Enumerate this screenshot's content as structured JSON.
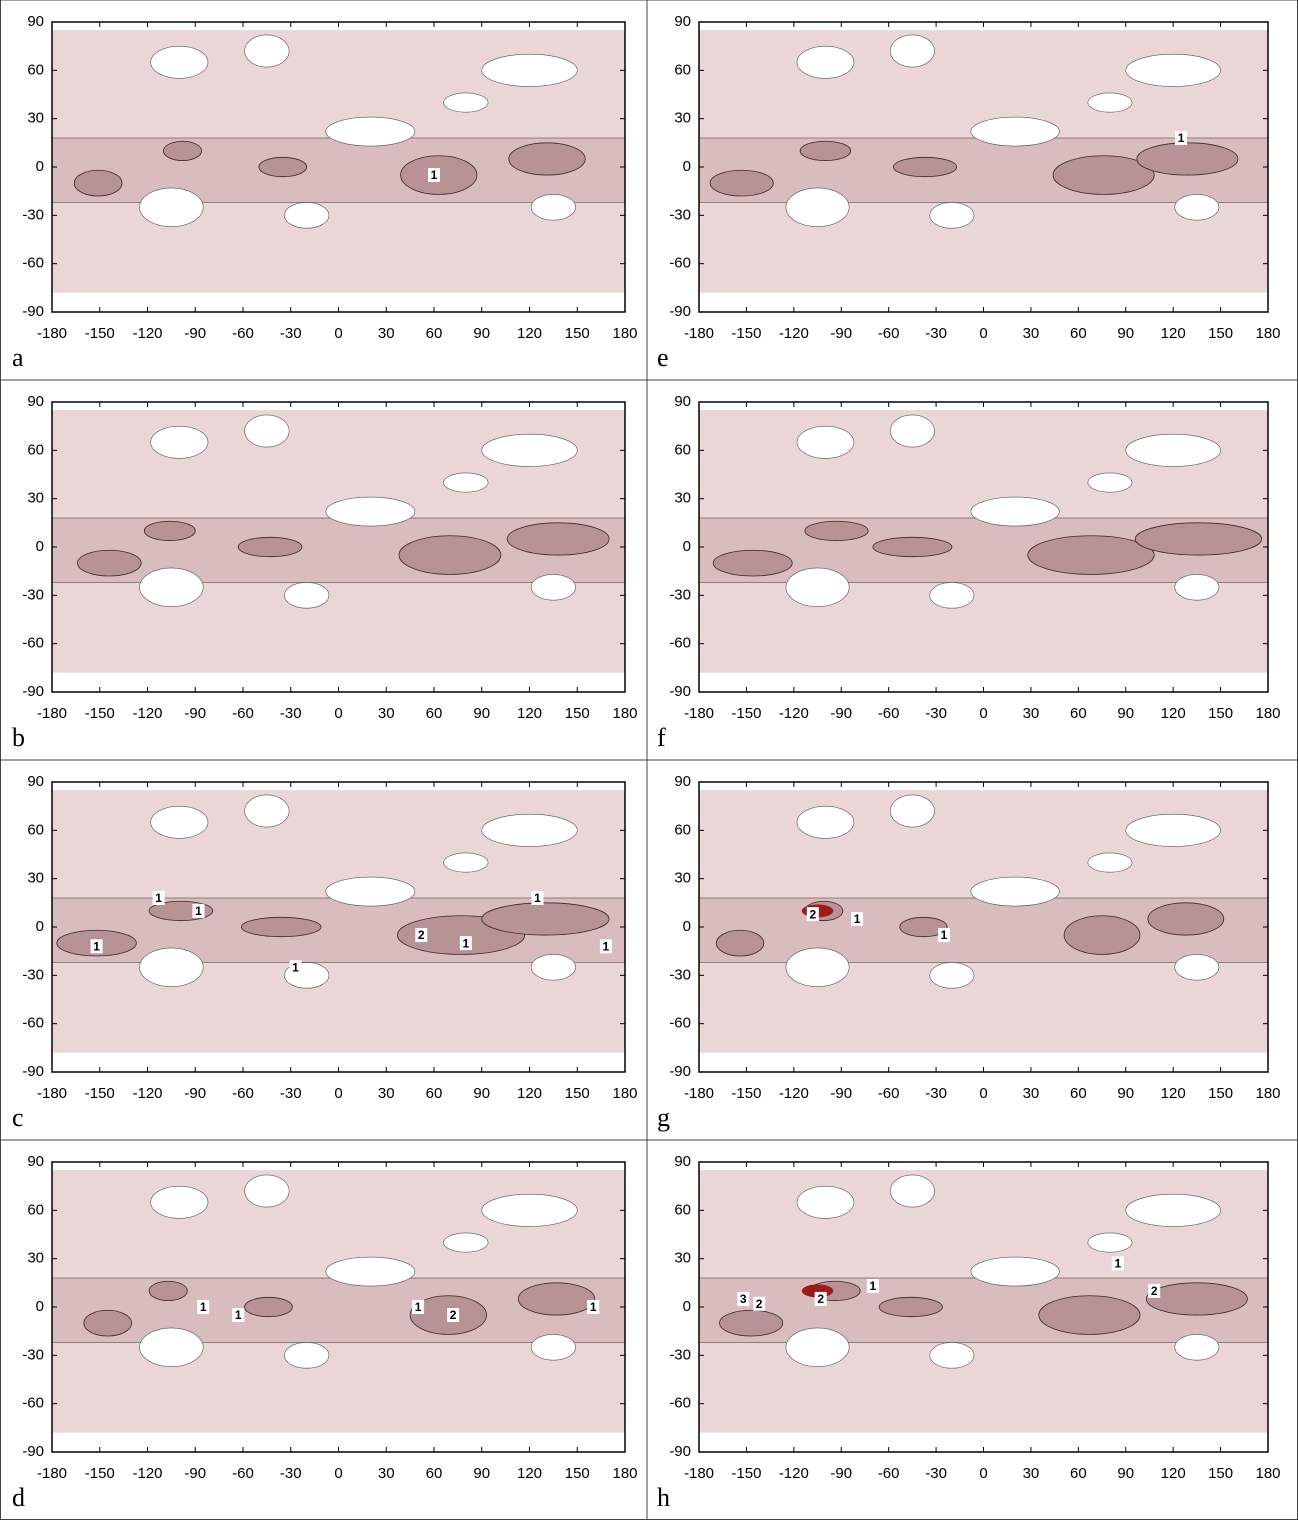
{
  "axes": {
    "xlim": [
      -180,
      180
    ],
    "ylim": [
      -90,
      90
    ],
    "xticks": [
      -180,
      -150,
      -120,
      -90,
      -60,
      -30,
      0,
      30,
      60,
      90,
      120,
      150,
      180
    ],
    "yticks": [
      90,
      60,
      30,
      0,
      -30,
      -60,
      -90
    ]
  },
  "panels": [
    {
      "label": "a",
      "contour_labels": [
        {
          "value": 1,
          "lon": 60,
          "lat": -5
        }
      ]
    },
    {
      "label": "b",
      "contour_labels": []
    },
    {
      "label": "c",
      "contour_labels": [
        {
          "value": 1,
          "lon": -152,
          "lat": -12
        },
        {
          "value": 1,
          "lon": -113,
          "lat": 18
        },
        {
          "value": 1,
          "lon": -88,
          "lat": 10
        },
        {
          "value": 1,
          "lon": -27,
          "lat": -25
        },
        {
          "value": 2,
          "lon": 52,
          "lat": -5
        },
        {
          "value": 1,
          "lon": 80,
          "lat": -10
        },
        {
          "value": 1,
          "lon": 125,
          "lat": 18
        },
        {
          "value": 1,
          "lon": 168,
          "lat": -12
        }
      ]
    },
    {
      "label": "d",
      "contour_labels": [
        {
          "value": 1,
          "lon": -85,
          "lat": 0
        },
        {
          "value": 1,
          "lon": -63,
          "lat": -5
        },
        {
          "value": 1,
          "lon": 50,
          "lat": 0
        },
        {
          "value": 2,
          "lon": 72,
          "lat": -5
        },
        {
          "value": 1,
          "lon": 160,
          "lat": 0
        }
      ]
    },
    {
      "label": "e",
      "contour_labels": [
        {
          "value": 1,
          "lon": 125,
          "lat": 18
        }
      ]
    },
    {
      "label": "f",
      "contour_labels": []
    },
    {
      "label": "g",
      "contour_labels": [
        {
          "value": 2,
          "lon": -108,
          "lat": 8
        },
        {
          "value": 1,
          "lon": -80,
          "lat": 5
        },
        {
          "value": 1,
          "lon": -25,
          "lat": -5
        }
      ]
    },
    {
      "label": "h",
      "contour_labels": [
        {
          "value": 3,
          "lon": -152,
          "lat": 5
        },
        {
          "value": 2,
          "lon": -142,
          "lat": 2
        },
        {
          "value": 2,
          "lon": -103,
          "lat": 5
        },
        {
          "value": 1,
          "lon": -70,
          "lat": 13
        },
        {
          "value": 1,
          "lon": 85,
          "lat": 27
        },
        {
          "value": 2,
          "lon": 108,
          "lat": 10
        }
      ]
    }
  ]
}
